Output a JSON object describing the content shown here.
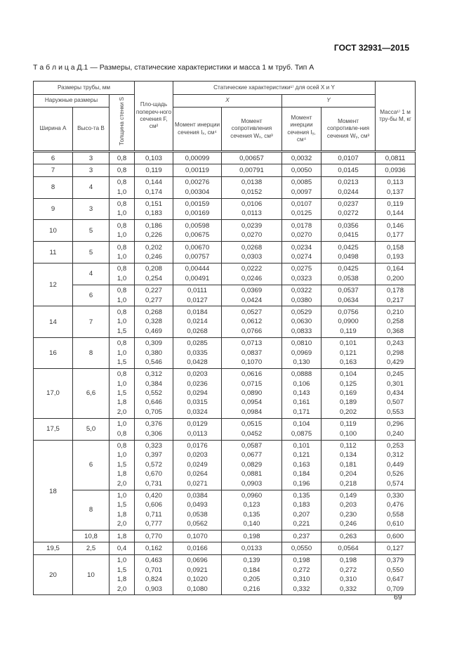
{
  "header": {
    "standard": "ГОСТ 32931—2015"
  },
  "caption": "Т а б л и ц а Д.1 — Размеры, статические характеристики и масса 1 м труб. Тип А",
  "page_number": "69",
  "table": {
    "h_dims": "Размеры трубы, мм",
    "h_outer": "Наружные размеры",
    "h_width": "Ширина A",
    "h_height": "Высо-та B",
    "h_wall": "Толщина стенки S",
    "h_area": "Пло-щадь попереч-ного сечения F, см²",
    "h_static": "Статические характеристики¹⁾ для осей X и Y",
    "h_x": "X",
    "h_y": "Y",
    "h_ix": "Момент инерции сечения Iₓ, см⁴",
    "h_wx": "Момент сопротивления сечения Wₓ, см³",
    "h_iy": "Момент инерции сечения Iᵧ, см⁴",
    "h_wy": "Момент сопротивле-ния сечения Wᵧ, см³",
    "h_mass": "Масса¹⁾ 1 м тру-бы M, кг",
    "groups": [
      {
        "A": "6",
        "subs": [
          {
            "B": "3",
            "rows": [
              [
                "0,8",
                "0,103",
                "0,00099",
                "0,00657",
                "0,0032",
                "0,0107",
                "0,0811"
              ]
            ]
          }
        ]
      },
      {
        "A": "7",
        "subs": [
          {
            "B": "3",
            "rows": [
              [
                "0,8",
                "0,119",
                "0,00119",
                "0,00791",
                "0,0050",
                "0,0145",
                "0,0936"
              ]
            ]
          }
        ]
      },
      {
        "A": "8",
        "subs": [
          {
            "B": "4",
            "rows": [
              [
                "0,8",
                "0,144",
                "0,00276",
                "0,0138",
                "0,0085",
                "0,0213",
                "0,113"
              ],
              [
                "1,0",
                "0,174",
                "0,00304",
                "0,0152",
                "0,0097",
                "0,0244",
                "0,137"
              ]
            ]
          }
        ]
      },
      {
        "A": "9",
        "subs": [
          {
            "B": "3",
            "rows": [
              [
                "0,8",
                "0,151",
                "0,00159",
                "0,0106",
                "0,0107",
                "0,0237",
                "0,119"
              ],
              [
                "1,0",
                "0,183",
                "0,00169",
                "0,0113",
                "0,0125",
                "0,0272",
                "0,144"
              ]
            ]
          }
        ]
      },
      {
        "A": "10",
        "subs": [
          {
            "B": "5",
            "rows": [
              [
                "0,8",
                "0,186",
                "0,00598",
                "0,0239",
                "0,0178",
                "0,0356",
                "0,146"
              ],
              [
                "1,0",
                "0,226",
                "0,00675",
                "0,0270",
                "0,0270",
                "0,0415",
                "0,177"
              ]
            ]
          }
        ]
      },
      {
        "A": "11",
        "subs": [
          {
            "B": "5",
            "rows": [
              [
                "0,8",
                "0,202",
                "0,00670",
                "0,0268",
                "0,0234",
                "0,0425",
                "0,158"
              ],
              [
                "1,0",
                "0,246",
                "0,00757",
                "0,0303",
                "0,0274",
                "0,0498",
                "0,193"
              ]
            ]
          }
        ]
      },
      {
        "A": "12",
        "subs": [
          {
            "B": "4",
            "rows": [
              [
                "0,8",
                "0,208",
                "0,00444",
                "0,0222",
                "0,0275",
                "0,0425",
                "0,164"
              ],
              [
                "1,0",
                "0,254",
                "0,00491",
                "0,0246",
                "0,0323",
                "0,0538",
                "0,200"
              ]
            ]
          },
          {
            "B": "6",
            "rows": [
              [
                "0,8",
                "0,227",
                "0,0111",
                "0,0369",
                "0,0322",
                "0,0537",
                "0,178"
              ],
              [
                "1,0",
                "0,277",
                "0,0127",
                "0,0424",
                "0,0380",
                "0,0634",
                "0,217"
              ]
            ]
          }
        ]
      },
      {
        "A": "14",
        "subs": [
          {
            "B": "7",
            "rows": [
              [
                "0,8",
                "0,268",
                "0,0184",
                "0,0527",
                "0,0529",
                "0,0756",
                "0,210"
              ],
              [
                "1,0",
                "0,328",
                "0,0214",
                "0,0612",
                "0,0630",
                "0,0900",
                "0,258"
              ],
              [
                "1,5",
                "0,469",
                "0,0268",
                "0,0766",
                "0,0833",
                "0,119",
                "0,368"
              ]
            ]
          }
        ]
      },
      {
        "A": "16",
        "subs": [
          {
            "B": "8",
            "rows": [
              [
                "0,8",
                "0,309",
                "0,0285",
                "0,0713",
                "0,0810",
                "0,101",
                "0,243"
              ],
              [
                "1,0",
                "0,380",
                "0,0335",
                "0,0837",
                "0,0969",
                "0,121",
                "0,298"
              ],
              [
                "1,5",
                "0,546",
                "0,0428",
                "0,1070",
                "0,130",
                "0,163",
                "0,429"
              ]
            ]
          }
        ]
      },
      {
        "A": "17,0",
        "subs": [
          {
            "B": "6,6",
            "rows": [
              [
                "0,8",
                "0,312",
                "0,0203",
                "0,0616",
                "0,0888",
                "0,104",
                "0,245"
              ],
              [
                "1,0",
                "0,384",
                "0,0236",
                "0,0715",
                "0,106",
                "0,125",
                "0,301"
              ],
              [
                "1,5",
                "0,552",
                "0,0294",
                "0,0890",
                "0,143",
                "0,169",
                "0,434"
              ],
              [
                "1,8",
                "0,646",
                "0,0315",
                "0,0954",
                "0,161",
                "0,189",
                "0,507"
              ],
              [
                "2,0",
                "0,705",
                "0,0324",
                "0,0984",
                "0,171",
                "0,202",
                "0,553"
              ]
            ]
          }
        ]
      },
      {
        "A": "17,5",
        "subs": [
          {
            "B": "5,0",
            "rows": [
              [
                "1,0",
                "0,376",
                "0,0129",
                "0,0515",
                "0,104",
                "0,119",
                "0,296"
              ],
              [
                "0,8",
                "0,306",
                "0,0113",
                "0,0452",
                "0,0875",
                "0,100",
                "0,240"
              ]
            ]
          }
        ]
      },
      {
        "A": "18",
        "subs": [
          {
            "B": "6",
            "rows": [
              [
                "0,8",
                "0,323",
                "0,0176",
                "0,0587",
                "0,101",
                "0,112",
                "0,253"
              ],
              [
                "1,0",
                "0,397",
                "0,0203",
                "0,0677",
                "0,121",
                "0,134",
                "0,312"
              ],
              [
                "1,5",
                "0,572",
                "0,0249",
                "0,0829",
                "0,163",
                "0,181",
                "0,449"
              ],
              [
                "1,8",
                "0,670",
                "0,0264",
                "0,0881",
                "0,184",
                "0,204",
                "0,526"
              ],
              [
                "2,0",
                "0,731",
                "0,0271",
                "0,0903",
                "0,196",
                "0,218",
                "0,574"
              ]
            ]
          },
          {
            "B": "8",
            "rows": [
              [
                "1,0",
                "0,420",
                "0,0384",
                "0,0960",
                "0,135",
                "0,149",
                "0,330"
              ],
              [
                "1,5",
                "0,606",
                "0,0493",
                "0,123",
                "0,183",
                "0,203",
                "0,476"
              ],
              [
                "1,8",
                "0,711",
                "0,0538",
                "0,135",
                "0,207",
                "0,230",
                "0,558"
              ],
              [
                "2,0",
                "0,777",
                "0,0562",
                "0,140",
                "0,221",
                "0,246",
                "0,610"
              ]
            ]
          },
          {
            "B": "10,8",
            "rows": [
              [
                "1,8",
                "0,770",
                "0,1070",
                "0,198",
                "0,237",
                "0,263",
                "0,600"
              ]
            ]
          }
        ]
      },
      {
        "A": "19,5",
        "subs": [
          {
            "B": "2,5",
            "rows": [
              [
                "0,4",
                "0,162",
                "0,0166",
                "0,0133",
                "0,0550",
                "0,0564",
                "0,127"
              ]
            ]
          }
        ]
      },
      {
        "A": "20",
        "subs": [
          {
            "B": "10",
            "rows": [
              [
                "1,0",
                "0,463",
                "0,0696",
                "0,139",
                "0,198",
                "0,198",
                "0,379"
              ],
              [
                "1,5",
                "0,701",
                "0,0921",
                "0,184",
                "0,272",
                "0,272",
                "0,550"
              ],
              [
                "1,8",
                "0,824",
                "0,1020",
                "0,205",
                "0,310",
                "0,310",
                "0,647"
              ],
              [
                "2,0",
                "0,903",
                "0,1080",
                "0,216",
                "0,332",
                "0,332",
                "0,709"
              ]
            ]
          }
        ]
      }
    ]
  }
}
